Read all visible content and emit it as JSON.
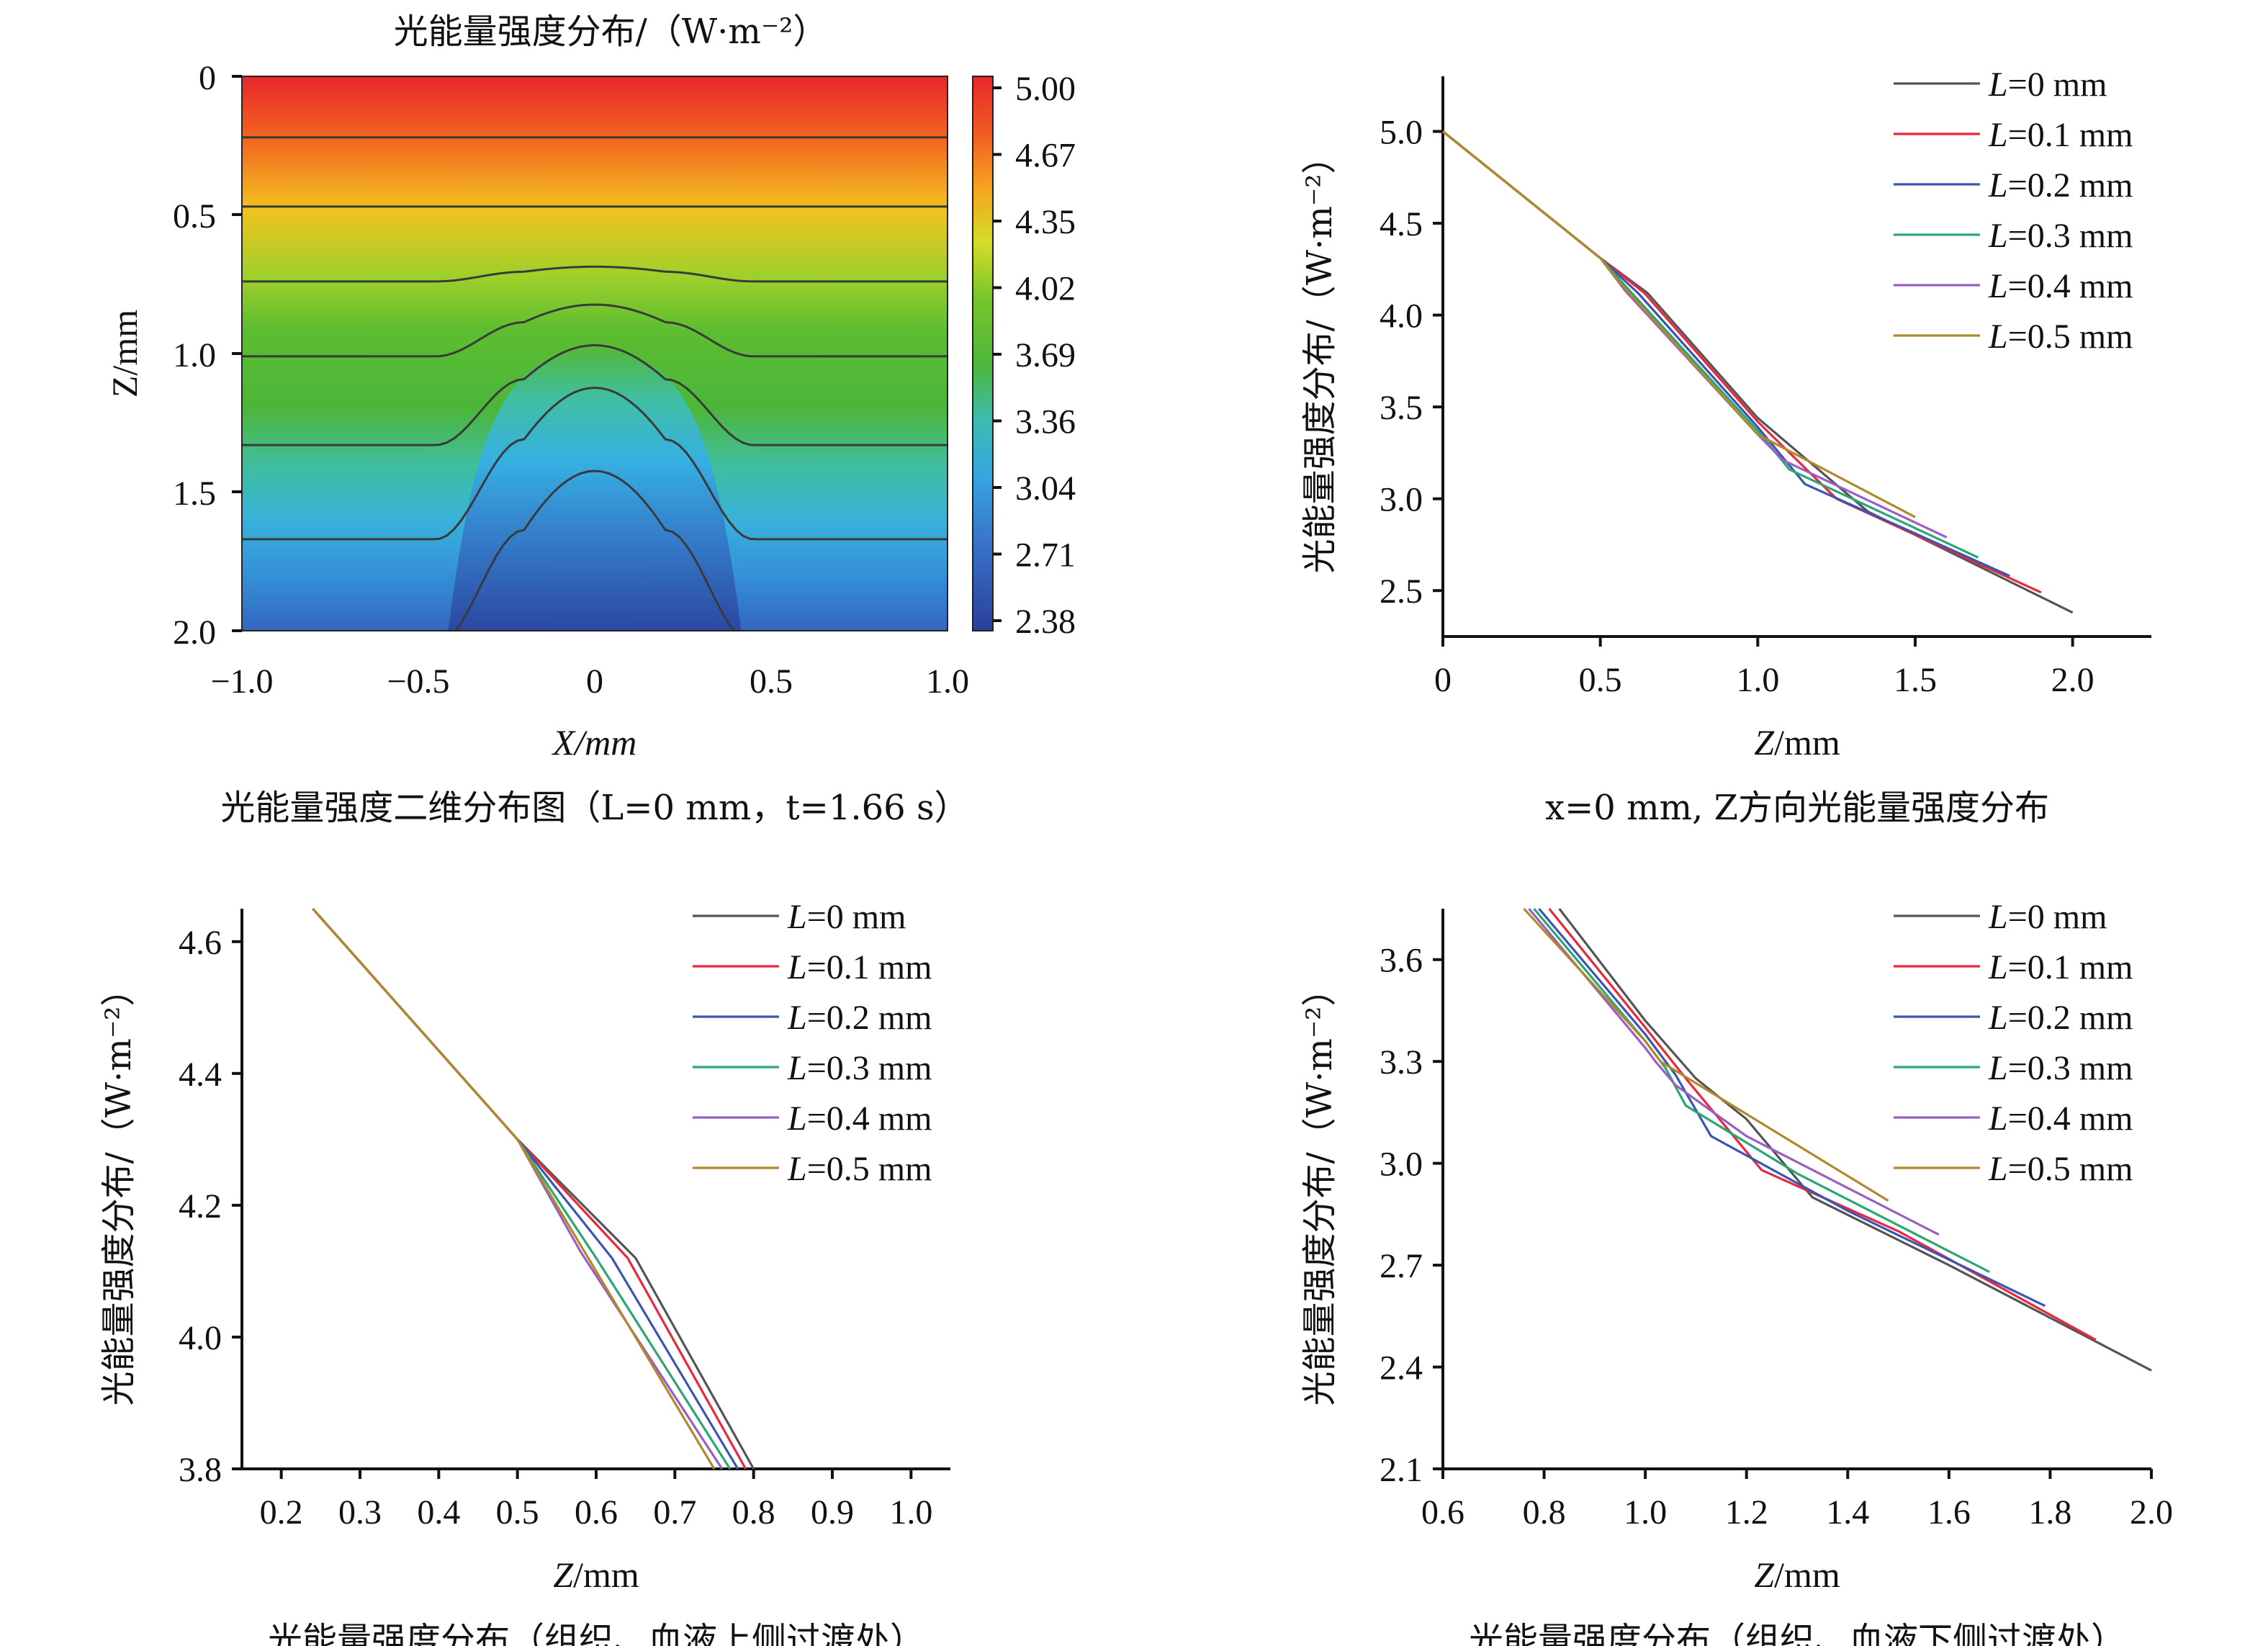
{
  "colors": {
    "L0": "#555555",
    "L01": "#e8283c",
    "L02": "#3a56b0",
    "L03": "#2aa774",
    "L04": "#9a5fc4",
    "L05": "#b08a2a"
  },
  "chart_data": [
    {
      "id": "a",
      "type": "heatmap",
      "title": "光能量强度分布/（W·m⁻²）",
      "xlabel": "X/mm",
      "ylabel": "Z/mm",
      "caption": "光能量强度二维分布图（L=0 mm，t=1.66 s）",
      "xlim": [
        -1.0,
        1.0
      ],
      "ylim": [
        0,
        2.0
      ],
      "y_inverted": true,
      "xticks": [
        "−1.0",
        "−0.5",
        "0",
        "0.5",
        "1.0"
      ],
      "yticks": [
        "0",
        "0.5",
        "1.0",
        "1.5",
        "2.0"
      ],
      "colorbar": {
        "labels": [
          "5.00",
          "4.67",
          "4.35",
          "4.02",
          "3.69",
          "3.36",
          "3.04",
          "2.71",
          "2.38"
        ],
        "min": 2.38,
        "max": 5.0
      },
      "contours": [
        {
          "z": 0.22,
          "bump": 0
        },
        {
          "z": 0.47,
          "bump": 0
        },
        {
          "z": 0.74,
          "bump": 0.04
        },
        {
          "z": 1.01,
          "bump": 0.14
        },
        {
          "z": 1.33,
          "bump": 0.27
        },
        {
          "z": 1.67,
          "bump": 0.41
        },
        {
          "z": 2.05,
          "bump": 0.47
        }
      ]
    },
    {
      "id": "b",
      "type": "line",
      "caption": "x=0 mm, Z方向光能量强度分布",
      "xlabel": "Z/mm",
      "ylabel": "光能量强度分布/（W·m⁻²）",
      "xlim": [
        0,
        2.25
      ],
      "ylim": [
        2.25,
        5.3
      ],
      "xticks": [
        "0",
        "0.5",
        "1.0",
        "1.5",
        "2.0"
      ],
      "yticks": [
        "2.5",
        "3.0",
        "3.5",
        "4.0",
        "4.5",
        "5.0"
      ],
      "legend_position": "top-right",
      "series": [
        {
          "name": "L=0 mm",
          "color_key": "L0",
          "x": [
            0,
            0.5,
            0.65,
            1.0,
            1.35,
            2.0
          ],
          "y": [
            5.0,
            4.31,
            4.12,
            3.44,
            2.93,
            2.38
          ]
        },
        {
          "name": "L=0.1 mm",
          "color_key": "L01",
          "x": [
            0,
            0.5,
            0.64,
            1.0,
            1.25,
            1.9
          ],
          "y": [
            5.0,
            4.31,
            4.12,
            3.42,
            3.0,
            2.49
          ]
        },
        {
          "name": "L=0.2 mm",
          "color_key": "L02",
          "x": [
            0,
            0.5,
            0.62,
            1.0,
            1.15,
            1.8
          ],
          "y": [
            5.0,
            4.31,
            4.12,
            3.39,
            3.08,
            2.58
          ]
        },
        {
          "name": "L=0.3 mm",
          "color_key": "L03",
          "x": [
            0,
            0.5,
            0.6,
            1.0,
            1.1,
            1.7
          ],
          "y": [
            5.0,
            4.31,
            4.12,
            3.37,
            3.16,
            2.68
          ]
        },
        {
          "name": "L=0.4 mm",
          "color_key": "L04",
          "x": [
            0,
            0.5,
            0.58,
            1.0,
            1.08,
            1.6
          ],
          "y": [
            5.0,
            4.31,
            4.13,
            3.35,
            3.21,
            2.79
          ]
        },
        {
          "name": "L=0.5 mm",
          "color_key": "L05",
          "x": [
            0,
            0.5,
            0.55,
            1.0,
            1.5
          ],
          "y": [
            5.0,
            4.31,
            4.2,
            3.35,
            2.9
          ]
        }
      ]
    },
    {
      "id": "c",
      "type": "line",
      "caption": "光能量强度分布（组织、血液上侧过渡处）",
      "xlabel": "Z/mm",
      "ylabel": "光能量强度分布/（W·m⁻²）",
      "xlim": [
        0.15,
        1.05
      ],
      "ylim": [
        3.8,
        4.65
      ],
      "xticks": [
        "0.2",
        "0.3",
        "0.4",
        "0.5",
        "0.6",
        "0.7",
        "0.8",
        "0.9",
        "1.0"
      ],
      "yticks": [
        "3.8",
        "4.0",
        "4.2",
        "4.4",
        "4.6"
      ],
      "legend_position": "top-right",
      "series": [
        {
          "name": "L=0 mm",
          "color_key": "L0",
          "x": [
            0.24,
            0.5,
            0.65,
            0.8
          ],
          "y": [
            4.65,
            4.3,
            4.12,
            3.8
          ]
        },
        {
          "name": "L=0.1 mm",
          "color_key": "L01",
          "x": [
            0.24,
            0.5,
            0.64,
            0.79
          ],
          "y": [
            4.65,
            4.3,
            4.12,
            3.8
          ]
        },
        {
          "name": "L=0.2 mm",
          "color_key": "L02",
          "x": [
            0.24,
            0.5,
            0.62,
            0.78
          ],
          "y": [
            4.65,
            4.3,
            4.12,
            3.8
          ]
        },
        {
          "name": "L=0.3 mm",
          "color_key": "L03",
          "x": [
            0.24,
            0.5,
            0.6,
            0.77
          ],
          "y": [
            4.65,
            4.3,
            4.12,
            3.8
          ]
        },
        {
          "name": "L=0.4 mm",
          "color_key": "L04",
          "x": [
            0.24,
            0.5,
            0.58,
            0.76
          ],
          "y": [
            4.65,
            4.3,
            4.13,
            3.8
          ]
        },
        {
          "name": "L=0.5 mm",
          "color_key": "L05",
          "x": [
            0.24,
            0.5,
            0.55,
            0.75
          ],
          "y": [
            4.65,
            4.3,
            4.2,
            3.8
          ]
        }
      ]
    },
    {
      "id": "d",
      "type": "line",
      "caption": "光能量强度分布（组织、血液下侧过渡处）",
      "xlabel": "Z/mm",
      "ylabel": "光能量强度分布/（W·m⁻²）",
      "xlim": [
        0.6,
        2.0
      ],
      "ylim": [
        2.1,
        3.75
      ],
      "xticks": [
        "0.6",
        "0.8",
        "1.0",
        "1.2",
        "1.4",
        "1.6",
        "1.8",
        "2.0"
      ],
      "yticks": [
        "2.1",
        "2.4",
        "2.7",
        "3.0",
        "3.3",
        "3.6"
      ],
      "legend_position": "top-right",
      "series": [
        {
          "name": "L=0 mm",
          "color_key": "L0",
          "x": [
            0.83,
            1.0,
            1.1,
            1.2,
            1.33,
            1.6,
            2.0
          ],
          "y": [
            3.75,
            3.42,
            3.25,
            3.13,
            2.9,
            2.7,
            2.39
          ]
        },
        {
          "name": "L=0.1 mm",
          "color_key": "L01",
          "x": [
            0.81,
            1.0,
            1.08,
            1.23,
            1.5,
            1.89
          ],
          "y": [
            3.75,
            3.4,
            3.25,
            2.98,
            2.8,
            2.48
          ]
        },
        {
          "name": "L=0.2 mm",
          "color_key": "L02",
          "x": [
            0.79,
            1.0,
            1.06,
            1.13,
            1.4,
            1.79
          ],
          "y": [
            3.75,
            3.38,
            3.26,
            3.08,
            2.86,
            2.58
          ]
        },
        {
          "name": "L=0.3 mm",
          "color_key": "L03",
          "x": [
            0.78,
            1.0,
            1.04,
            1.08,
            1.3,
            1.68
          ],
          "y": [
            3.75,
            3.36,
            3.28,
            3.17,
            2.97,
            2.68
          ]
        },
        {
          "name": "L=0.4 mm",
          "color_key": "L04",
          "x": [
            0.77,
            1.0,
            1.02,
            1.06,
            1.2,
            1.58
          ],
          "y": [
            3.75,
            3.34,
            3.3,
            3.23,
            3.08,
            2.79
          ]
        },
        {
          "name": "L=0.5 mm",
          "color_key": "L05",
          "x": [
            0.76,
            1.0,
            1.03,
            1.48
          ],
          "y": [
            3.75,
            3.36,
            3.3,
            2.89
          ]
        }
      ]
    }
  ]
}
